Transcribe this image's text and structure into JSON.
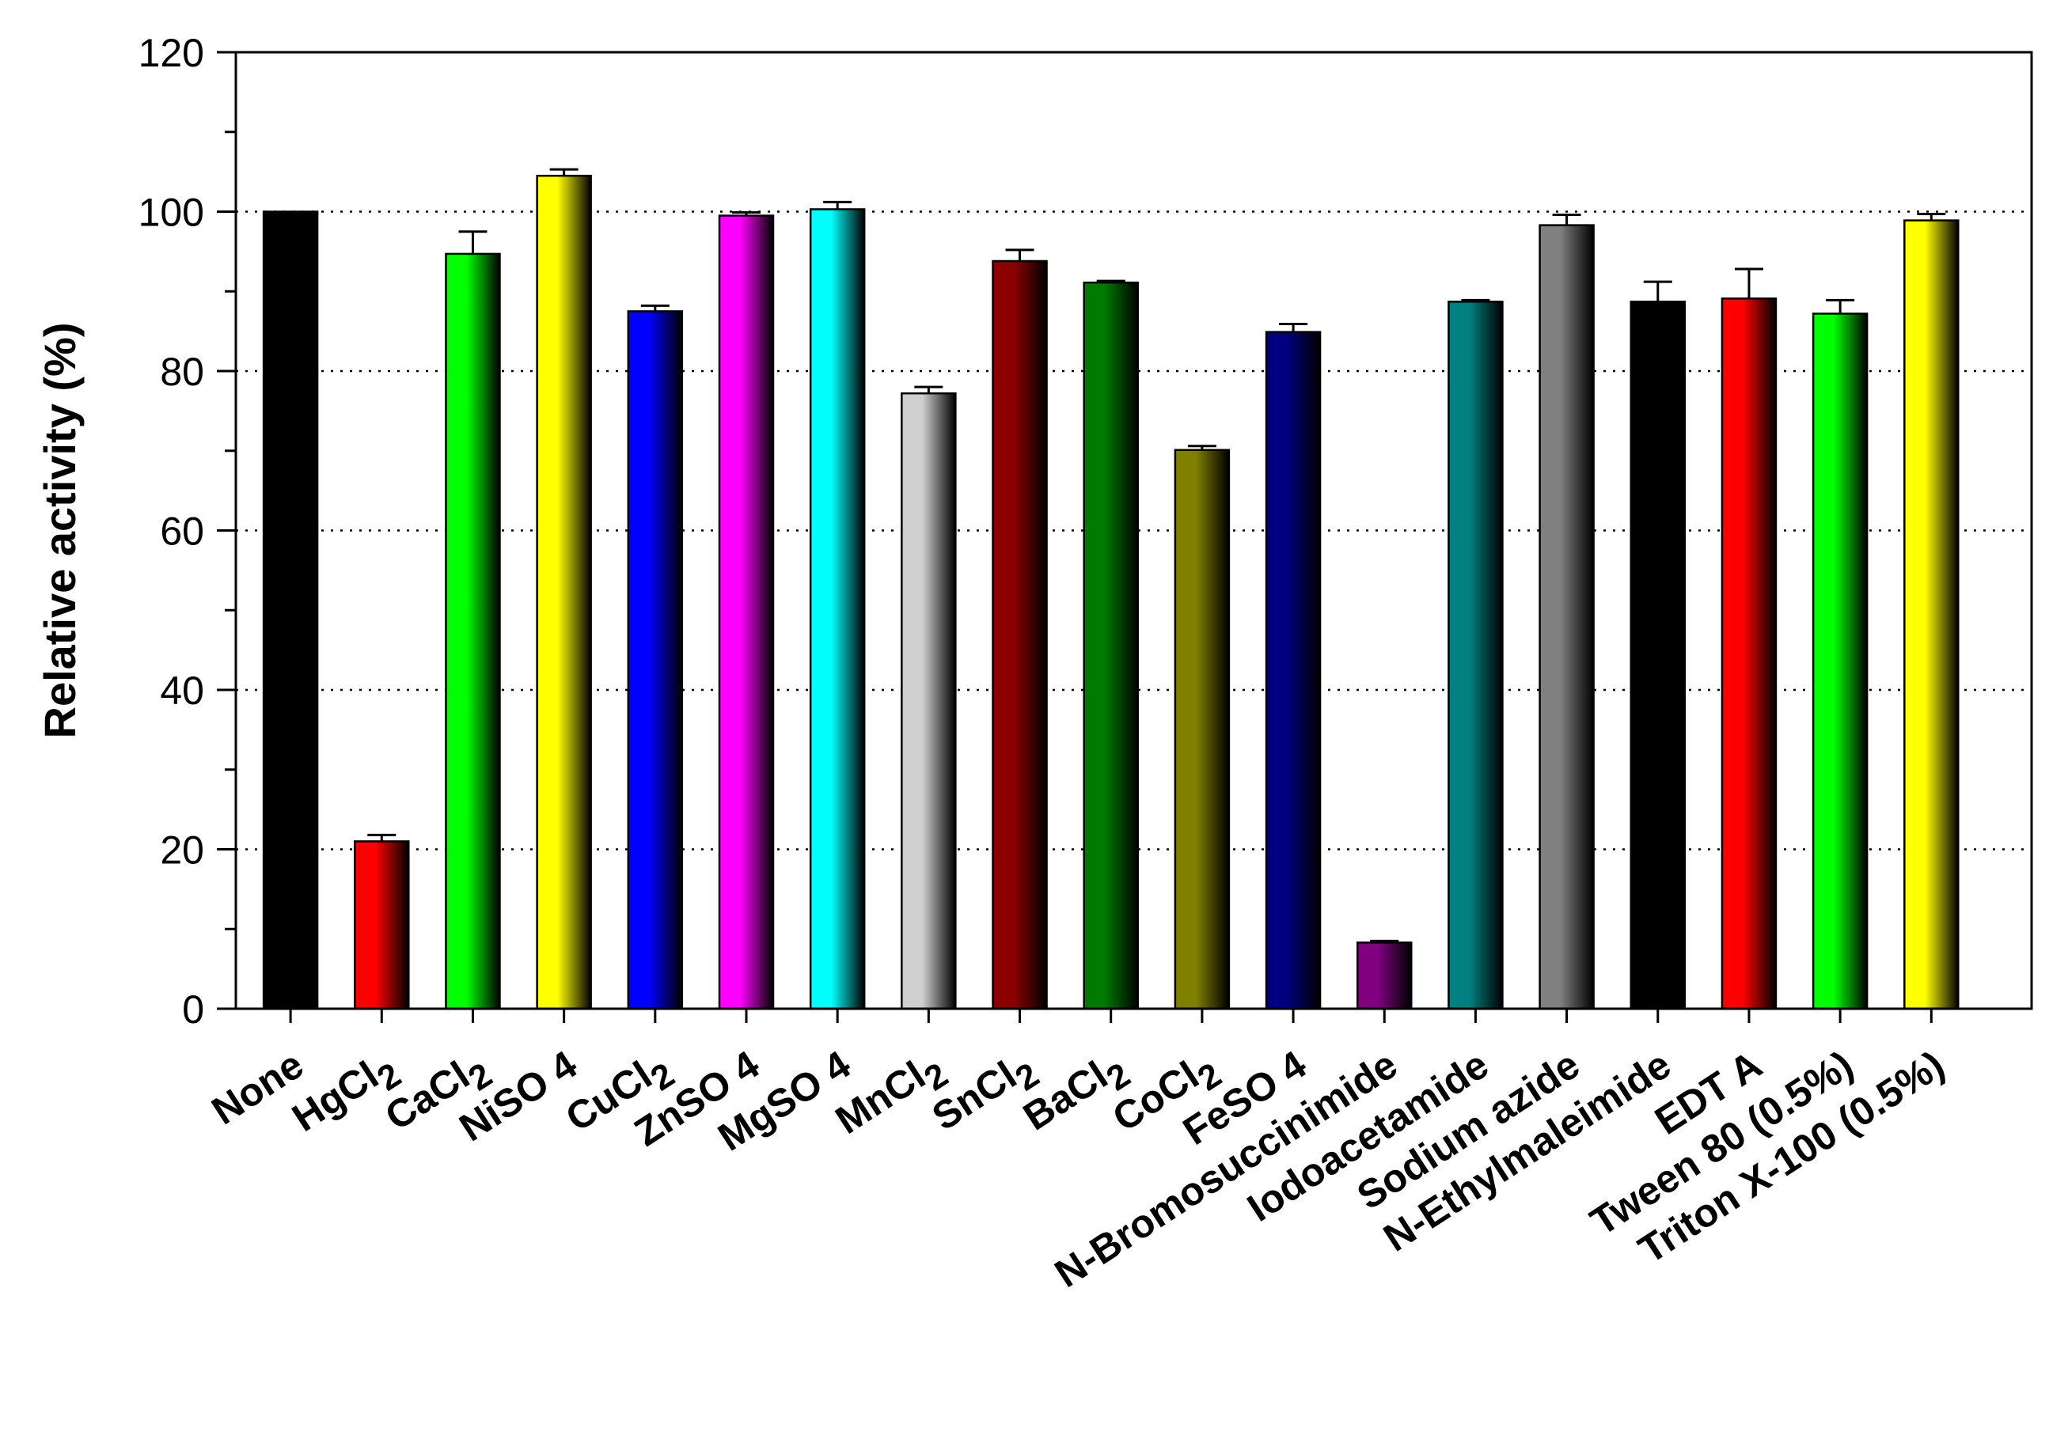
{
  "chart_data": {
    "type": "bar",
    "title": "",
    "xlabel": "",
    "ylabel": "Relative activity (%)",
    "ylim": [
      0,
      120
    ],
    "yticks": [
      0,
      20,
      40,
      60,
      80,
      100,
      120
    ],
    "grid": "horizontal dotted",
    "categories": [
      {
        "label": "None",
        "main": "None"
      },
      {
        "label": "HgCl2",
        "main": "HgCl",
        "sub": "2"
      },
      {
        "label": "CaCl2",
        "main": "CaCl",
        "sub": "2"
      },
      {
        "label": "NiSO 4",
        "main": "NiSO 4"
      },
      {
        "label": "CuCl2",
        "main": "CuCl",
        "sub": "2"
      },
      {
        "label": "ZnSO 4",
        "main": "ZnSO 4"
      },
      {
        "label": "MgSO 4",
        "main": "MgSO 4"
      },
      {
        "label": "MnCl2",
        "main": "MnCl",
        "sub": "2"
      },
      {
        "label": "SnCl2",
        "main": "SnCl",
        "sub": "2"
      },
      {
        "label": "BaCl2",
        "main": "BaCl",
        "sub": "2"
      },
      {
        "label": "CoCl2",
        "main": "CoCl",
        "sub": "2"
      },
      {
        "label": "FeSO 4",
        "main": "FeSO 4"
      },
      {
        "label": "N-Bromosuccinimide",
        "main": "N-Bromosuccinimide"
      },
      {
        "label": "Iodoacetamide",
        "main": "Iodoacetamide"
      },
      {
        "label": "Sodium azide",
        "main": "Sodium azide"
      },
      {
        "label": "N-Ethylmaleimide",
        "main": "N-Ethylmaleimide"
      },
      {
        "label": "EDT A",
        "main": "EDT A"
      },
      {
        "label": "Tween 80 (0.5%)",
        "main": "Tween 80 (0.5%)"
      },
      {
        "label": "Triton X-100 (0.5%)",
        "main": "Triton X-100 (0.5%)"
      }
    ],
    "values": [
      100,
      21,
      94.7,
      104.5,
      87.5,
      99.5,
      100.3,
      77.2,
      93.8,
      91.1,
      70.1,
      84.9,
      8.3,
      88.7,
      98.3,
      88.7,
      89.1,
      87.2,
      98.9
    ],
    "errors": [
      0,
      0.8,
      2.8,
      0.8,
      0.7,
      0.4,
      0.9,
      0.8,
      1.4,
      0.2,
      0.5,
      1.0,
      0.2,
      0.2,
      1.3,
      2.5,
      3.7,
      1.7,
      0.8
    ],
    "colors": [
      "#000000",
      "#ff0000",
      "#00ff00",
      "#ffff00",
      "#0000ff",
      "#ff00ff",
      "#00ffff",
      "#d0d0d0",
      "#8b0000",
      "#007a00",
      "#808000",
      "#000080",
      "#800080",
      "#008080",
      "#808080",
      "#000000",
      "#ff0000",
      "#00ff00",
      "#ffff00"
    ]
  }
}
